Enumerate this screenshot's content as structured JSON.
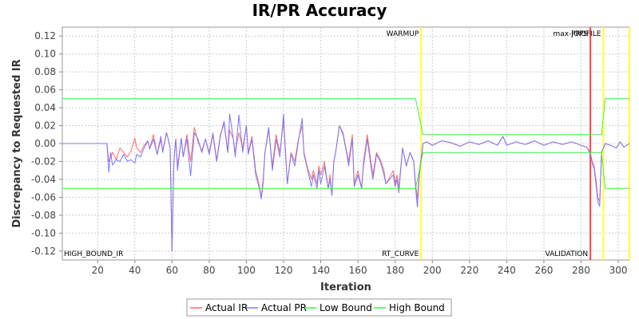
{
  "chart_data": {
    "type": "line",
    "title": "IR/PR Accuracy",
    "xlabel": "Iteration",
    "ylabel": "Discrepancy to Requested IR",
    "xlim": [
      1,
      306
    ],
    "ylim": [
      -0.13,
      0.13
    ],
    "x_ticks": [
      20,
      40,
      60,
      80,
      100,
      120,
      140,
      160,
      180,
      200,
      220,
      240,
      260,
      280,
      300
    ],
    "y_ticks": [
      -0.12,
      -0.1,
      -0.08,
      -0.06,
      -0.04,
      -0.02,
      0.0,
      0.02,
      0.04,
      0.06,
      0.08,
      0.1,
      0.12
    ],
    "grid": true,
    "legend_position": "bottom",
    "series": [
      {
        "name": "Actual IR",
        "color": "#ff6a6a",
        "points": [
          [
            1,
            0
          ],
          [
            10,
            0
          ],
          [
            20,
            0
          ],
          [
            25,
            0
          ],
          [
            26,
            -0.02
          ],
          [
            28,
            -0.01
          ],
          [
            30,
            -0.018
          ],
          [
            32,
            -0.005
          ],
          [
            34,
            -0.01
          ],
          [
            36,
            -0.015
          ],
          [
            38,
            -0.008
          ],
          [
            40,
            0.006
          ],
          [
            41,
            -0.005
          ],
          [
            43,
            -0.01
          ],
          [
            45,
            -0.002
          ],
          [
            47,
            0.003
          ],
          [
            48,
            -0.006
          ],
          [
            50,
            0.01
          ],
          [
            52,
            -0.012
          ],
          [
            54,
            0.004
          ],
          [
            55,
            -0.008
          ],
          [
            57,
            0.012
          ],
          [
            58,
            0.005
          ],
          [
            59,
            -0.005
          ],
          [
            60,
            -0.12
          ],
          [
            61,
            -0.02
          ],
          [
            62,
            0.005
          ],
          [
            63,
            -0.025
          ],
          [
            65,
            0.006
          ],
          [
            66,
            -0.015
          ],
          [
            68,
            0.01
          ],
          [
            70,
            -0.02
          ],
          [
            72,
            0.018
          ],
          [
            74,
            0.002
          ],
          [
            76,
            -0.008
          ],
          [
            78,
            0.005
          ],
          [
            80,
            -0.01
          ],
          [
            82,
            0.012
          ],
          [
            84,
            -0.018
          ],
          [
            86,
            0.01
          ],
          [
            88,
            0.022
          ],
          [
            90,
            -0.01
          ],
          [
            91,
            0.015
          ],
          [
            93,
            0.005
          ],
          [
            94,
            -0.01
          ],
          [
            96,
            0.012
          ],
          [
            98,
            -0.005
          ],
          [
            100,
            0.02
          ],
          [
            101,
            -0.01
          ],
          [
            103,
            0.008
          ],
          [
            105,
            -0.03
          ],
          [
            107,
            -0.048
          ],
          [
            108,
            -0.06
          ],
          [
            109,
            -0.04
          ],
          [
            110,
            -0.01
          ],
          [
            112,
            0.015
          ],
          [
            114,
            -0.025
          ],
          [
            116,
            0.01
          ],
          [
            118,
            -0.01
          ],
          [
            120,
            0.025
          ],
          [
            121,
            -0.005
          ],
          [
            122,
            -0.045
          ],
          [
            124,
            -0.01
          ],
          [
            126,
            -0.02
          ],
          [
            128,
            0.005
          ],
          [
            130,
            0.02
          ],
          [
            131,
            -0.01
          ],
          [
            133,
            -0.028
          ],
          [
            135,
            -0.04
          ],
          [
            136,
            -0.03
          ],
          [
            138,
            -0.045
          ],
          [
            139,
            -0.025
          ],
          [
            140,
            -0.035
          ],
          [
            142,
            -0.02
          ],
          [
            144,
            -0.05
          ],
          [
            145,
            -0.035
          ],
          [
            146,
            -0.058
          ],
          [
            147,
            -0.02
          ],
          [
            148,
            -0.01
          ],
          [
            150,
            0.02
          ],
          [
            152,
            0.012
          ],
          [
            154,
            -0.01
          ],
          [
            155,
            -0.02
          ],
          [
            157,
            0.01
          ],
          [
            158,
            -0.045
          ],
          [
            160,
            -0.03
          ],
          [
            162,
            -0.05
          ],
          [
            163,
            -0.02
          ],
          [
            165,
            0.01
          ],
          [
            167,
            -0.02
          ],
          [
            168,
            -0.035
          ],
          [
            170,
            -0.01
          ],
          [
            172,
            -0.018
          ],
          [
            174,
            -0.03
          ],
          [
            175,
            -0.045
          ],
          [
            177,
            -0.038
          ],
          [
            179,
            -0.03
          ],
          [
            180,
            -0.045
          ],
          [
            181,
            -0.035
          ],
          [
            182,
            -0.05
          ],
          [
            184,
            -0.005
          ],
          [
            186,
            -0.025
          ],
          [
            188,
            -0.01
          ],
          [
            190,
            -0.02
          ],
          [
            191,
            -0.045
          ],
          [
            192,
            -0.062
          ],
          [
            193,
            -0.03
          ],
          [
            195,
            0.0
          ],
          [
            197,
            0.002
          ],
          [
            200,
            -0.002
          ],
          [
            205,
            0.003
          ],
          [
            210,
            0.001
          ],
          [
            215,
            -0.003
          ],
          [
            220,
            0.002
          ],
          [
            225,
            -0.001
          ],
          [
            230,
            0.003
          ],
          [
            235,
            -0.002
          ],
          [
            238,
            0.008
          ],
          [
            240,
            -0.002
          ],
          [
            245,
            0.002
          ],
          [
            250,
            -0.001
          ],
          [
            255,
            0.003
          ],
          [
            260,
            -0.002
          ],
          [
            265,
            0.002
          ],
          [
            270,
            -0.001
          ],
          [
            275,
            0.002
          ],
          [
            280,
            -0.002
          ],
          [
            283,
            -0.004
          ],
          [
            285,
            -0.01
          ],
          [
            286,
            -0.02
          ],
          [
            287,
            -0.025
          ],
          [
            288,
            -0.04
          ],
          [
            289,
            -0.06
          ],
          [
            290,
            -0.065
          ],
          [
            291,
            -0.01
          ],
          [
            293,
            0.0
          ],
          [
            296,
            -0.002
          ],
          [
            299,
            -0.005
          ],
          [
            301,
            0.002
          ],
          [
            303,
            -0.004
          ],
          [
            306,
            0.0
          ]
        ]
      },
      {
        "name": "Actual PR",
        "color": "#7777ff",
        "points": [
          [
            1,
            0
          ],
          [
            10,
            0
          ],
          [
            20,
            0
          ],
          [
            25,
            0
          ],
          [
            26,
            -0.032
          ],
          [
            27,
            -0.01
          ],
          [
            28,
            -0.024
          ],
          [
            30,
            -0.018
          ],
          [
            32,
            -0.02
          ],
          [
            34,
            -0.012
          ],
          [
            36,
            -0.02
          ],
          [
            38,
            -0.018
          ],
          [
            40,
            -0.022
          ],
          [
            41,
            -0.012
          ],
          [
            43,
            -0.015
          ],
          [
            45,
            -0.005
          ],
          [
            47,
            0.003
          ],
          [
            48,
            -0.006
          ],
          [
            50,
            0.005
          ],
          [
            52,
            -0.012
          ],
          [
            54,
            0.008
          ],
          [
            55,
            -0.01
          ],
          [
            57,
            0.012
          ],
          [
            58,
            0.005
          ],
          [
            59,
            -0.005
          ],
          [
            60,
            -0.12
          ],
          [
            61,
            -0.02
          ],
          [
            62,
            0.005
          ],
          [
            63,
            -0.03
          ],
          [
            65,
            0.006
          ],
          [
            66,
            -0.015
          ],
          [
            68,
            0.005
          ],
          [
            70,
            -0.036
          ],
          [
            72,
            0.012
          ],
          [
            74,
            0.005
          ],
          [
            76,
            -0.01
          ],
          [
            78,
            0.005
          ],
          [
            80,
            -0.012
          ],
          [
            82,
            0.01
          ],
          [
            84,
            -0.02
          ],
          [
            86,
            0.008
          ],
          [
            88,
            0.025
          ],
          [
            90,
            -0.01
          ],
          [
            91,
            0.033
          ],
          [
            93,
            0.005
          ],
          [
            94,
            -0.015
          ],
          [
            96,
            0.032
          ],
          [
            98,
            -0.01
          ],
          [
            100,
            0.02
          ],
          [
            101,
            -0.012
          ],
          [
            103,
            0.005
          ],
          [
            105,
            -0.035
          ],
          [
            107,
            -0.05
          ],
          [
            108,
            -0.062
          ],
          [
            109,
            -0.045
          ],
          [
            110,
            -0.01
          ],
          [
            112,
            0.018
          ],
          [
            114,
            -0.03
          ],
          [
            116,
            0.005
          ],
          [
            118,
            -0.015
          ],
          [
            120,
            0.033
          ],
          [
            121,
            -0.01
          ],
          [
            122,
            -0.045
          ],
          [
            124,
            -0.012
          ],
          [
            126,
            -0.025
          ],
          [
            128,
            0.003
          ],
          [
            130,
            0.028
          ],
          [
            131,
            -0.012
          ],
          [
            133,
            -0.03
          ],
          [
            135,
            -0.048
          ],
          [
            136,
            -0.035
          ],
          [
            138,
            -0.05
          ],
          [
            139,
            -0.03
          ],
          [
            140,
            -0.045
          ],
          [
            142,
            -0.025
          ],
          [
            144,
            -0.05
          ],
          [
            145,
            -0.04
          ],
          [
            146,
            -0.058
          ],
          [
            147,
            -0.02
          ],
          [
            148,
            -0.01
          ],
          [
            150,
            0.02
          ],
          [
            152,
            0.01
          ],
          [
            154,
            -0.012
          ],
          [
            155,
            -0.025
          ],
          [
            157,
            0.005
          ],
          [
            158,
            -0.048
          ],
          [
            160,
            -0.035
          ],
          [
            162,
            -0.05
          ],
          [
            163,
            -0.025
          ],
          [
            165,
            0.005
          ],
          [
            167,
            -0.025
          ],
          [
            168,
            -0.04
          ],
          [
            170,
            -0.012
          ],
          [
            172,
            -0.02
          ],
          [
            174,
            -0.035
          ],
          [
            175,
            -0.045
          ],
          [
            177,
            -0.04
          ],
          [
            179,
            -0.035
          ],
          [
            180,
            -0.048
          ],
          [
            181,
            -0.04
          ],
          [
            182,
            -0.055
          ],
          [
            184,
            -0.005
          ],
          [
            186,
            -0.025
          ],
          [
            188,
            -0.01
          ],
          [
            190,
            -0.02
          ],
          [
            191,
            -0.05
          ],
          [
            192,
            -0.071
          ],
          [
            193,
            -0.035
          ],
          [
            195,
            0.0
          ],
          [
            197,
            0.002
          ],
          [
            200,
            -0.002
          ],
          [
            205,
            0.003
          ],
          [
            210,
            0.001
          ],
          [
            215,
            -0.003
          ],
          [
            220,
            0.002
          ],
          [
            225,
            -0.001
          ],
          [
            230,
            0.003
          ],
          [
            235,
            -0.002
          ],
          [
            238,
            0.008
          ],
          [
            240,
            -0.002
          ],
          [
            245,
            0.002
          ],
          [
            250,
            -0.001
          ],
          [
            255,
            0.003
          ],
          [
            260,
            -0.002
          ],
          [
            265,
            0.002
          ],
          [
            270,
            -0.001
          ],
          [
            275,
            0.002
          ],
          [
            280,
            -0.002
          ],
          [
            283,
            -0.004
          ],
          [
            285,
            -0.012
          ],
          [
            286,
            -0.022
          ],
          [
            287,
            -0.028
          ],
          [
            288,
            -0.045
          ],
          [
            289,
            -0.065
          ],
          [
            290,
            -0.07
          ],
          [
            291,
            -0.01
          ],
          [
            293,
            0.0
          ],
          [
            296,
            -0.002
          ],
          [
            299,
            -0.005
          ],
          [
            301,
            0.002
          ],
          [
            303,
            -0.004
          ],
          [
            306,
            0.0
          ]
        ]
      },
      {
        "name": "Low Bound",
        "color": "#44ee44",
        "points": [
          [
            1,
            -0.05
          ],
          [
            191,
            -0.05
          ],
          [
            195,
            -0.01
          ],
          [
            291,
            -0.01
          ],
          [
            293,
            -0.05
          ],
          [
            306,
            -0.05
          ]
        ]
      },
      {
        "name": "High Bound",
        "color": "#44ee44",
        "points": [
          [
            1,
            0.05
          ],
          [
            191,
            0.05
          ],
          [
            195,
            0.01
          ],
          [
            291,
            0.01
          ],
          [
            293,
            0.05
          ],
          [
            306,
            0.05
          ]
        ]
      }
    ],
    "markers": [
      {
        "x": 194,
        "color": "#ffff33",
        "top_label": "WARMUP",
        "bottom_label": "RT_CURVE"
      },
      {
        "x": 285,
        "color": "#ff4444",
        "top_label": "max-jOPS",
        "bottom_label": "VALIDATION"
      },
      {
        "x": 292,
        "color": "#ffff33",
        "top_label": "PROFILE",
        "bottom_label": ""
      },
      {
        "x": 306,
        "color": "#ffff33",
        "top_label": "",
        "bottom_label": ""
      }
    ],
    "corner_label": "HIGH_BOUND_IR"
  }
}
